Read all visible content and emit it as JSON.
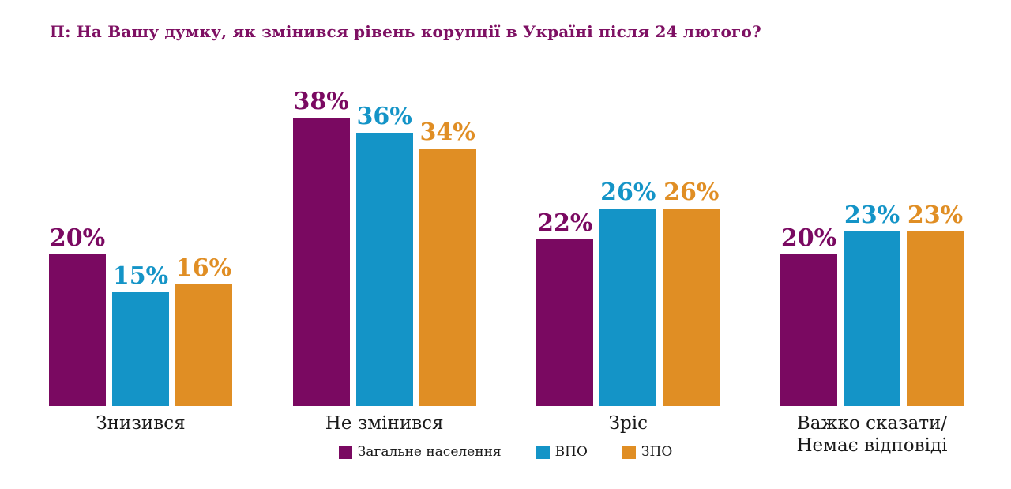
{
  "title": "П: На Вашу думку, як змінився рівень корупції в Україні після 24 лютого?",
  "colors": {
    "title_text": "#7E1063",
    "label_text": "#1a1a1a",
    "background": "#ffffff"
  },
  "chart_data": {
    "type": "bar",
    "title": "П: На Вашу думку, як змінився рівень корупції в Україні після 24 лютого?",
    "categories": [
      "Знизився",
      "Не змінився",
      "Зріс",
      "Важко сказати/\nНемає відповіді"
    ],
    "series": [
      {
        "name": "Загальне населення",
        "color": "#7A0961",
        "values": [
          20,
          38,
          22,
          20
        ]
      },
      {
        "name": "ВПО",
        "color": "#1494C7",
        "values": [
          15,
          36,
          26,
          23
        ]
      },
      {
        "name": "ЗПО",
        "color": "#E08E24",
        "values": [
          16,
          34,
          26,
          23
        ]
      }
    ],
    "value_suffix": "%",
    "value_labels": "above-bars",
    "xlabel": "",
    "ylabel": "",
    "ylim": [
      0,
      40
    ],
    "grid": false,
    "axis_lines": false,
    "legend_position": "bottom-center"
  }
}
